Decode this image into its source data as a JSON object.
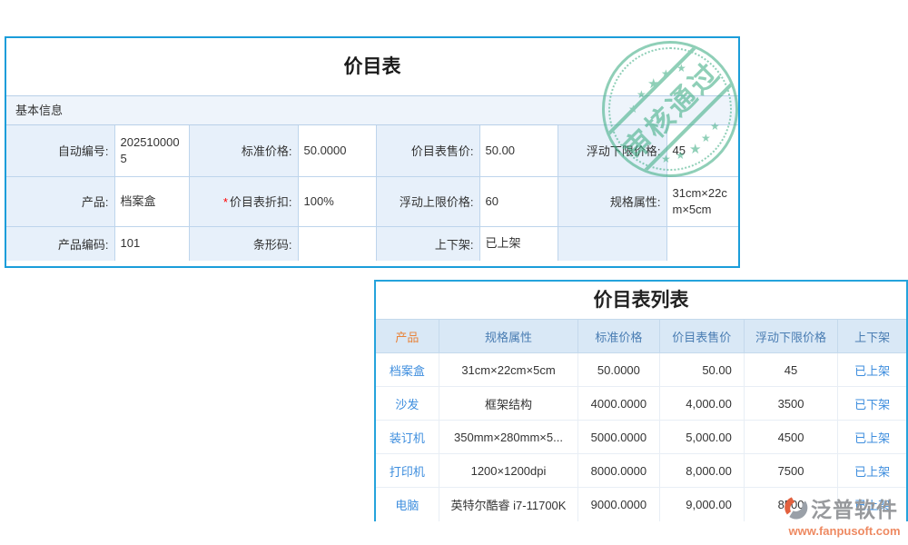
{
  "form_panel": {
    "title": "价目表",
    "section_header": "基本信息",
    "rows": [
      {
        "fields": [
          {
            "label": "自动编号:",
            "value": "2025100005",
            "required": false
          },
          {
            "label": "标准价格:",
            "value": "50.0000",
            "required": false
          },
          {
            "label": "价目表售价:",
            "value": "50.00",
            "required": false
          },
          {
            "label": "浮动下限价格:",
            "value": "45",
            "required": false
          }
        ]
      },
      {
        "fields": [
          {
            "label": "产品:",
            "value": "档案盒",
            "required": false
          },
          {
            "label": "价目表折扣:",
            "value": "100%",
            "required": true
          },
          {
            "label": "浮动上限价格:",
            "value": "60",
            "required": false
          },
          {
            "label": "规格属性:",
            "value": "31cm×22cm×5cm",
            "required": false
          }
        ]
      },
      {
        "fields": [
          {
            "label": "产品编码:",
            "value": "101",
            "required": false
          },
          {
            "label": "条形码:",
            "value": "",
            "required": false
          },
          {
            "label": "上下架:",
            "value": "已上架",
            "required": false
          },
          {
            "label": "",
            "value": "",
            "required": false
          }
        ]
      }
    ]
  },
  "stamp": {
    "text": "审核通过",
    "star_glyph": "★",
    "color": "#3fae85"
  },
  "list_panel": {
    "title": "价目表列表",
    "columns": [
      "产品",
      "规格属性",
      "标准价格",
      "价目表售价",
      "浮动下限价格",
      "上下架"
    ],
    "rows": [
      [
        "档案盒",
        "31cm×22cm×5cm",
        "50.0000",
        "50.00",
        "45",
        "已上架"
      ],
      [
        "沙发",
        "框架结构",
        "4000.0000",
        "4,000.00",
        "3500",
        "已下架"
      ],
      [
        "装订机",
        "350mm×280mm×5...",
        "5000.0000",
        "5,000.00",
        "4500",
        "已上架"
      ],
      [
        "打印机",
        "1200×1200dpi",
        "8000.0000",
        "8,000.00",
        "7500",
        "已上架"
      ],
      [
        "电脑",
        "英特尔酷睿 i7-11700K",
        "9000.0000",
        "9,000.00",
        "8500",
        "已上架"
      ]
    ]
  },
  "watermark": {
    "brand": "泛普软件",
    "url": "www.fanpusoft.com"
  },
  "colors": {
    "panel_border": "#1b9dda",
    "stamp_green": "#3fae85",
    "header_text_blue": "#4a7db3",
    "product_header_orange": "#e8833a",
    "link_blue": "#3e8ede"
  }
}
